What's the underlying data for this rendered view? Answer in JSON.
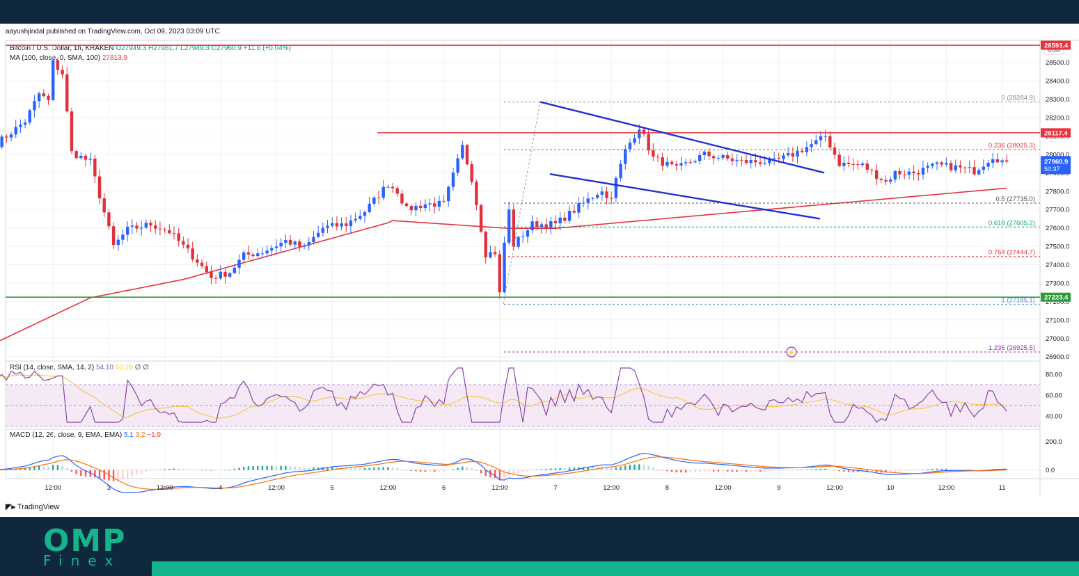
{
  "header": {
    "publish_text": "aayushjindal published on TradingView.com, Oct 09, 2023 03:09 UTC",
    "symbol": "Bitcoin / U.S. Dollar, 1h, KRAKEN",
    "ohlc": "O27949.3 H27961.7 L27949.3 C27960.9 +11.6 (+0.04%)",
    "ma_label": "MA (100, close, 0, SMA, 100)",
    "ma_value": "27813.9",
    "currency": "USD"
  },
  "rsi_legend": {
    "label": "RSI (14, close, SMA, 14, 2)",
    "v1": "54.10",
    "v2": "50.28",
    "v3": "∅ ∅"
  },
  "macd_legend": {
    "label": "MACD (12, 26, close, 9, EMA, EMA)",
    "v1": "5.1",
    "v2": "3.2",
    "v3": "−1.9"
  },
  "footer": {
    "tradingview": "TradingView",
    "brand_top": "OMP",
    "brand_bottom": "Finex"
  },
  "colors": {
    "up": "#089981",
    "down": "#f23645",
    "candle_up": "#2962ff",
    "candle_down": "#e0303a",
    "ma": "#e8323c",
    "trend": "#2030d8",
    "support": "#2e9a3a",
    "rsi": "#8b43a8",
    "rsi_ma": "#f7c948",
    "macd": "#2962ff",
    "signal": "#ff6d00"
  },
  "chart_data": {
    "type": "candlestick",
    "ylim": [
      26880,
      28620
    ],
    "x_ticks": [
      "12:00",
      "3",
      "12:00",
      "4",
      "12:00",
      "5",
      "12:00",
      "6",
      "12:00",
      "7",
      "12:00",
      "8",
      "12:00",
      "9",
      "12:00",
      "10",
      "12:00",
      "11"
    ],
    "y_ticks": [
      "28500.0",
      "28400.0",
      "28300.0",
      "28200.0",
      "28100.0",
      "28000.0",
      "27900.0",
      "27800.0",
      "27700.0",
      "27600.0",
      "27500.0",
      "27400.0",
      "27300.0",
      "27200.0",
      "27100.0",
      "27000.0",
      "26900.0"
    ],
    "price_badges": [
      {
        "value": 28593.4,
        "label": "28593.4",
        "color": "#e8323c"
      },
      {
        "value": 28117.4,
        "label": "28117.4",
        "color": "#e8323c"
      },
      {
        "value": 27960.9,
        "label": "27960.9",
        "sub": "50:37",
        "color": "#2962ff"
      },
      {
        "value": 27223.4,
        "label": "27223.4",
        "color": "#2e9a3a"
      }
    ],
    "fib_levels": [
      {
        "ratio": "0",
        "value": 28284.9,
        "label": "0 (28284.9)",
        "color": "#888888"
      },
      {
        "ratio": "0.236",
        "value": 28025.3,
        "label": "0.236 (28025.3)",
        "color": "#e8323c"
      },
      {
        "ratio": "0.5",
        "value": 27735.0,
        "label": "0.5 (27735.0)",
        "color": "#555555"
      },
      {
        "ratio": "0.618",
        "value": 27605.2,
        "label": "0.618 (27605.2)",
        "color": "#089981"
      },
      {
        "ratio": "0.764",
        "value": 27444.7,
        "label": "0.764 (27444.7)",
        "color": "#e8323c"
      },
      {
        "ratio": "1",
        "value": 27185.1,
        "label": "1 (27185.1)",
        "color": "#5b8fd9"
      },
      {
        "ratio": "1.236",
        "value": 26925.5,
        "label": "1.236 (26925.5)",
        "color": "#9c27b0"
      }
    ],
    "horizontal_lines": [
      {
        "name": "top-resistance",
        "value": 28593.4,
        "color": "#e8323c"
      },
      {
        "name": "resistance",
        "value": 28117.4,
        "color": "#e8323c"
      },
      {
        "name": "support",
        "value": 27223.4,
        "color": "#2e9a3a"
      }
    ],
    "rsi": {
      "ylim": [
        28,
        92
      ],
      "ticks": [
        "80.00",
        "60.00",
        "40.00"
      ],
      "band": [
        30,
        70
      ]
    },
    "macd": {
      "ylim": [
        -60,
        280
      ],
      "ticks": [
        "200.0",
        "0.0"
      ]
    }
  }
}
